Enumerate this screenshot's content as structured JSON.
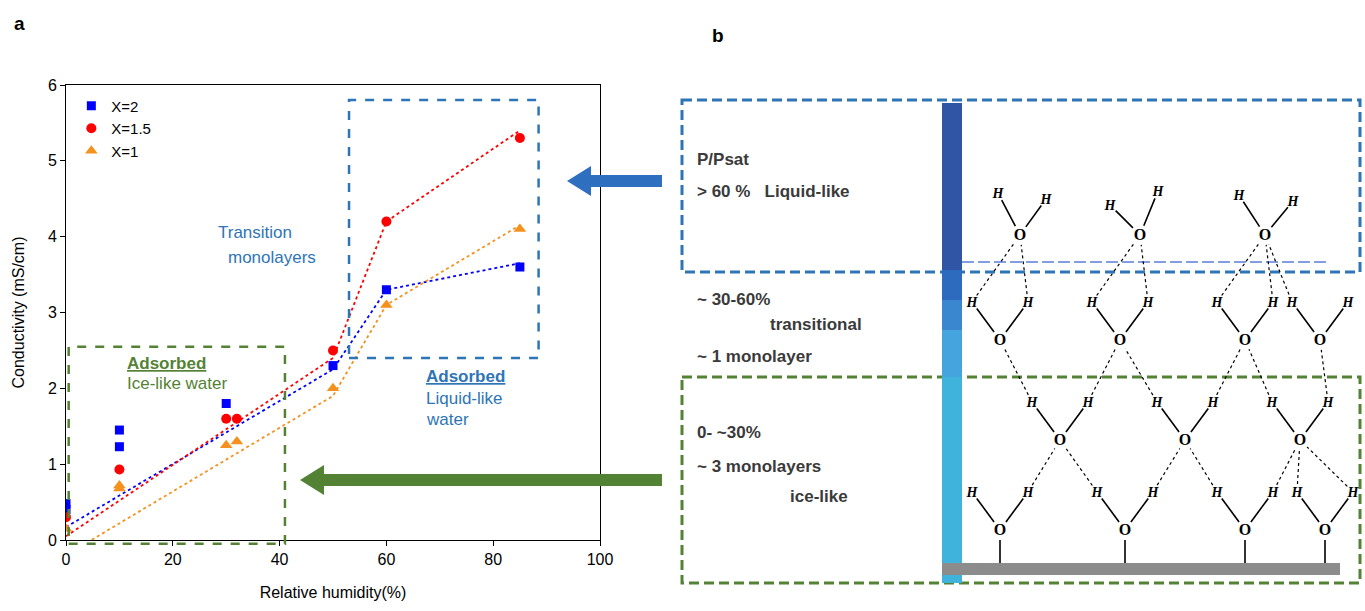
{
  "chart_data": {
    "type": "scatter",
    "panel_letter": "a",
    "x_label": "Relative humidity(%)",
    "y_label": "Conductivity (mS/cm)",
    "xlim": [
      0,
      100
    ],
    "xticks": [
      0,
      20,
      40,
      60,
      80,
      100
    ],
    "ylim": [
      0,
      6
    ],
    "yticks": [
      0,
      1,
      2,
      3,
      4,
      5,
      6
    ],
    "grid": false,
    "legend": "upper left",
    "series": [
      {
        "name": "X=2",
        "color": "#0000ff",
        "marker": "square",
        "x": [
          0,
          0,
          10,
          10,
          30,
          50,
          60,
          85
        ],
        "values": [
          0.48,
          0.4,
          1.45,
          1.23,
          1.8,
          2.3,
          3.3,
          3.6
        ],
        "fit": {
          "x": [
            0,
            50,
            60,
            85
          ],
          "values": [
            0.17,
            2.25,
            3.3,
            3.65
          ],
          "line_style": "dotted"
        }
      },
      {
        "name": "X=1.5",
        "color": "#ff0000",
        "marker": "circle",
        "x": [
          0,
          10,
          30,
          32,
          50,
          60,
          85
        ],
        "values": [
          0.3,
          0.93,
          1.6,
          1.6,
          2.5,
          4.2,
          5.3
        ],
        "fit": {
          "x": [
            0,
            50,
            60,
            85
          ],
          "values": [
            0.05,
            2.4,
            4.2,
            5.4
          ],
          "line_style": "dotted"
        }
      },
      {
        "name": "X=1",
        "color": "#f5921e",
        "marker": "triangle",
        "x": [
          0,
          10,
          10,
          30,
          32,
          50,
          60,
          85
        ],
        "values": [
          0.15,
          0.72,
          0.68,
          1.25,
          1.3,
          2.0,
          3.1,
          4.1
        ],
        "fit": {
          "x": [
            0,
            50,
            60,
            85
          ],
          "values": [
            -0.2,
            1.9,
            3.1,
            4.15
          ],
          "line_style": "dotted"
        }
      }
    ],
    "annotations": [
      {
        "lines": [
          "Transition",
          "monolayers"
        ],
        "color": "#2e75b6"
      },
      {
        "lines": [
          "Adsorbed",
          "Ice-like water"
        ],
        "color": "#548235"
      },
      {
        "lines": [
          "Adsorbed",
          "Liquid-like",
          "water"
        ],
        "color": "#2e75b6"
      }
    ]
  },
  "diagram": {
    "panel_letter": "b",
    "regions": [
      {
        "lines": [
          "P/Psat",
          "> 60 %   Liquid-like"
        ]
      },
      {
        "lines": [
          "~ 30-60%",
          "transitional",
          "~ 1 monolayer"
        ]
      },
      {
        "lines": [
          "0- ~30%",
          "~ 3 monolayers",
          "ice-like"
        ]
      }
    ],
    "atoms": {
      "oxygen": "O",
      "hydrogen": "H"
    }
  }
}
